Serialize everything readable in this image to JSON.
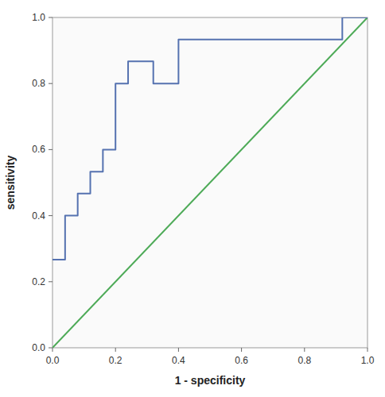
{
  "chart_data": {
    "type": "line",
    "xlabel": "1 - specificity",
    "ylabel": "sensitivity",
    "series": [
      {
        "x": [
          0.0,
          1.0
        ],
        "values": [
          0.0,
          1.0
        ],
        "color": "#4daa57"
      },
      {
        "x": [
          0.0,
          0.0,
          0.04,
          0.04,
          0.08,
          0.08,
          0.12,
          0.12,
          0.16,
          0.16,
          0.2,
          0.2,
          0.24,
          0.24,
          0.32,
          0.32,
          0.4,
          0.4,
          0.44,
          0.44,
          0.92,
          0.92,
          1.0,
          1.0
        ],
        "values": [
          0.267,
          0.267,
          0.267,
          0.4,
          0.4,
          0.467,
          0.467,
          0.533,
          0.533,
          0.6,
          0.6,
          0.8,
          0.8,
          0.867,
          0.867,
          0.8,
          0.8,
          0.933,
          0.933,
          0.933,
          0.933,
          1.0,
          1.0,
          1.0
        ],
        "color": "#5572b0"
      }
    ],
    "xlim": [
      0.0,
      1.0
    ],
    "ylim": [
      0.0,
      1.0
    ],
    "xticks": [
      {
        "value": 0.0,
        "label": "0.0"
      },
      0.2,
      0.4,
      0.6,
      0.8,
      {
        "value": 1.0,
        "label": "1.0"
      }
    ],
    "yticks": [
      {
        "value": 0.0,
        "label": "0.0"
      },
      0.2,
      0.4,
      0.6,
      0.8,
      {
        "value": 1.0,
        "label": "1.0"
      }
    ],
    "grid": false
  }
}
